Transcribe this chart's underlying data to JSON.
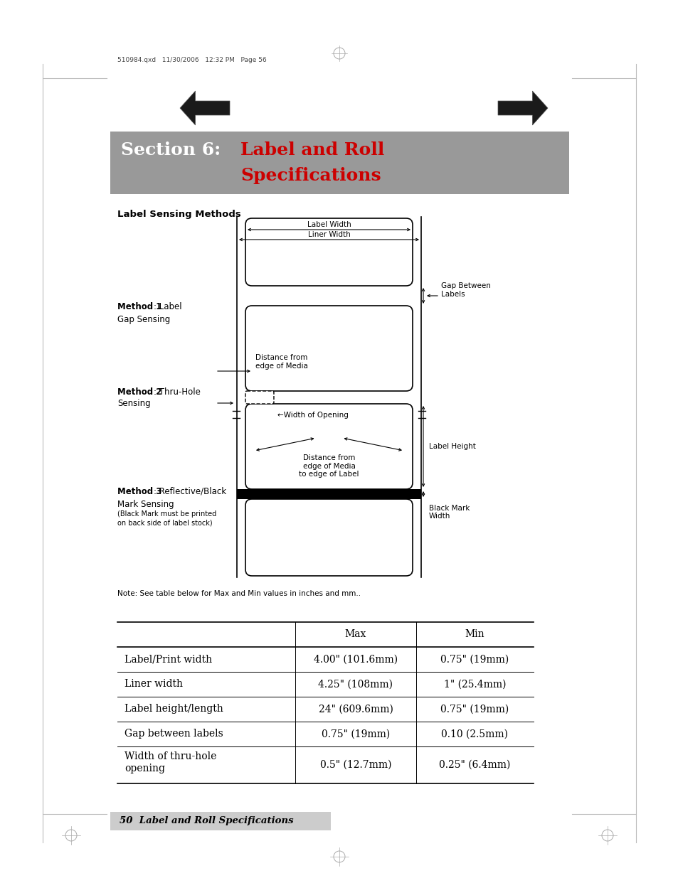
{
  "bg_color": "#ffffff",
  "page_header_text": "510984.qxd   11/30/2006   12:32 PM   Page 56",
  "section_bg_color": "#999999",
  "arrow_color": "#1a1a1a",
  "diagram_title": "Label Sensing Methods",
  "note_text": "Note: See table below for Max and Min values in inches and mm..",
  "footer_text": "50  Label and Roll Specifications",
  "footer_bg": "#cccccc",
  "table_headers": [
    "",
    "Max",
    "Min"
  ],
  "table_rows": [
    [
      "Label/Print width",
      "4.00\" (101.6mm)",
      "0.75\" (19mm)"
    ],
    [
      "Liner width",
      "4.25\" (108mm)",
      "1\" (25.4mm)"
    ],
    [
      "Label height/length",
      "24\" (609.6mm)",
      "0.75\" (19mm)"
    ],
    [
      "Gap between labels",
      "0.75\" (19mm)",
      "0.10 (2.5mm)"
    ],
    [
      "Width of thru-hole\nopening",
      "0.5\" (12.7mm)",
      "0.25\" (6.4mm)"
    ]
  ]
}
